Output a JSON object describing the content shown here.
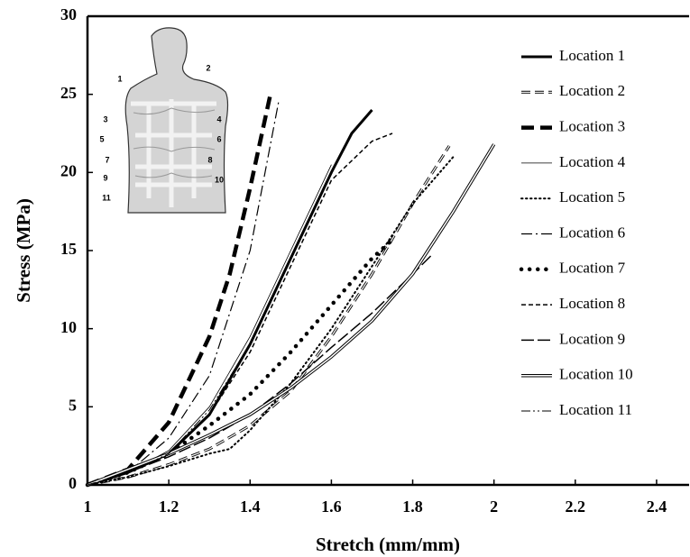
{
  "chart_data": {
    "type": "line",
    "x_label": "Stretch (mm/mm)",
    "y_label": "Stress (MPa)",
    "xlim": [
      1,
      2.48
    ],
    "xticks": [
      1,
      1.2,
      1.4,
      1.6,
      1.8,
      2,
      2.2,
      2.4
    ],
    "ylim": [
      0,
      30
    ],
    "yticks": [
      0,
      5,
      10,
      15,
      20,
      25,
      30
    ],
    "legend": "right",
    "inset_labels": [
      "1",
      "2",
      "3",
      "4",
      "5",
      "6",
      "7",
      "8",
      "9",
      "10",
      "11"
    ],
    "series": [
      {
        "name": "Location 1",
        "color": "#000000",
        "x": [
          1,
          1.1,
          1.2,
          1.3,
          1.4,
          1.5,
          1.6,
          1.65,
          1.7
        ],
        "values": [
          0,
          0.8,
          2,
          4.5,
          9,
          14.5,
          20,
          22.5,
          24
        ]
      },
      {
        "name": "Location 2",
        "color": "#000000",
        "x": [
          1,
          1.1,
          1.2,
          1.3,
          1.4,
          1.5,
          1.6,
          1.7,
          1.8,
          1.89
        ],
        "values": [
          0,
          0.5,
          1.3,
          2.3,
          3.8,
          6,
          9.5,
          13.5,
          18,
          21.7
        ]
      },
      {
        "name": "Location 3",
        "color": "#000000",
        "x": [
          1,
          1.1,
          1.2,
          1.3,
          1.35,
          1.4,
          1.45
        ],
        "values": [
          0,
          1,
          4,
          9.5,
          13.5,
          19,
          25
        ]
      },
      {
        "name": "Location 4",
        "color": "#000000",
        "x": [
          1,
          1.1,
          1.2,
          1.3,
          1.4,
          1.5,
          1.6
        ],
        "values": [
          0,
          0.8,
          2.2,
          5,
          9.5,
          15,
          20.5
        ]
      },
      {
        "name": "Location 5",
        "color": "#000000",
        "x": [
          1,
          1.1,
          1.2,
          1.3,
          1.35,
          1.4,
          1.5,
          1.6,
          1.7,
          1.8,
          1.9
        ],
        "values": [
          0,
          0.5,
          1.2,
          2,
          2.3,
          3.5,
          6.5,
          10,
          14,
          18,
          21
        ]
      },
      {
        "name": "Location 6",
        "color": "#000000",
        "x": [
          1,
          1.1,
          1.2,
          1.3,
          1.4,
          1.47
        ],
        "values": [
          0,
          0.8,
          3,
          7,
          15,
          24.5
        ]
      },
      {
        "name": "Location 7",
        "color": "#000000",
        "x": [
          1,
          1.1,
          1.2,
          1.3,
          1.4,
          1.5,
          1.6,
          1.7,
          1.75
        ],
        "values": [
          0,
          0.8,
          2,
          3.8,
          5.8,
          8.5,
          11.5,
          14.5,
          15.7
        ]
      },
      {
        "name": "Location 8",
        "color": "#000000",
        "x": [
          1,
          1.1,
          1.2,
          1.3,
          1.4,
          1.5,
          1.6,
          1.7,
          1.75
        ],
        "values": [
          0,
          0.8,
          2,
          4.5,
          8.5,
          14,
          19.5,
          22,
          22.5
        ]
      },
      {
        "name": "Location 9",
        "color": "#000000",
        "x": [
          1,
          1.1,
          1.2,
          1.3,
          1.4,
          1.5,
          1.6,
          1.7,
          1.8,
          1.85
        ],
        "values": [
          0,
          0.8,
          1.8,
          3,
          4.5,
          6.5,
          8.8,
          11,
          13.5,
          14.8
        ]
      },
      {
        "name": "Location 10",
        "color": "#000000",
        "x": [
          1,
          1.1,
          1.2,
          1.3,
          1.4,
          1.5,
          1.6,
          1.7,
          1.8,
          1.9,
          2
        ],
        "values": [
          0,
          1,
          2,
          3.2,
          4.5,
          6.2,
          8.2,
          10.5,
          13.5,
          17.5,
          21.8
        ]
      },
      {
        "name": "Location 11",
        "color": "#000000",
        "x": [
          1,
          1.1,
          1.2,
          1.3,
          1.4,
          1.5,
          1.6
        ],
        "values": [
          0,
          0.8,
          2,
          4.8,
          9,
          14.5,
          20
        ]
      }
    ]
  }
}
